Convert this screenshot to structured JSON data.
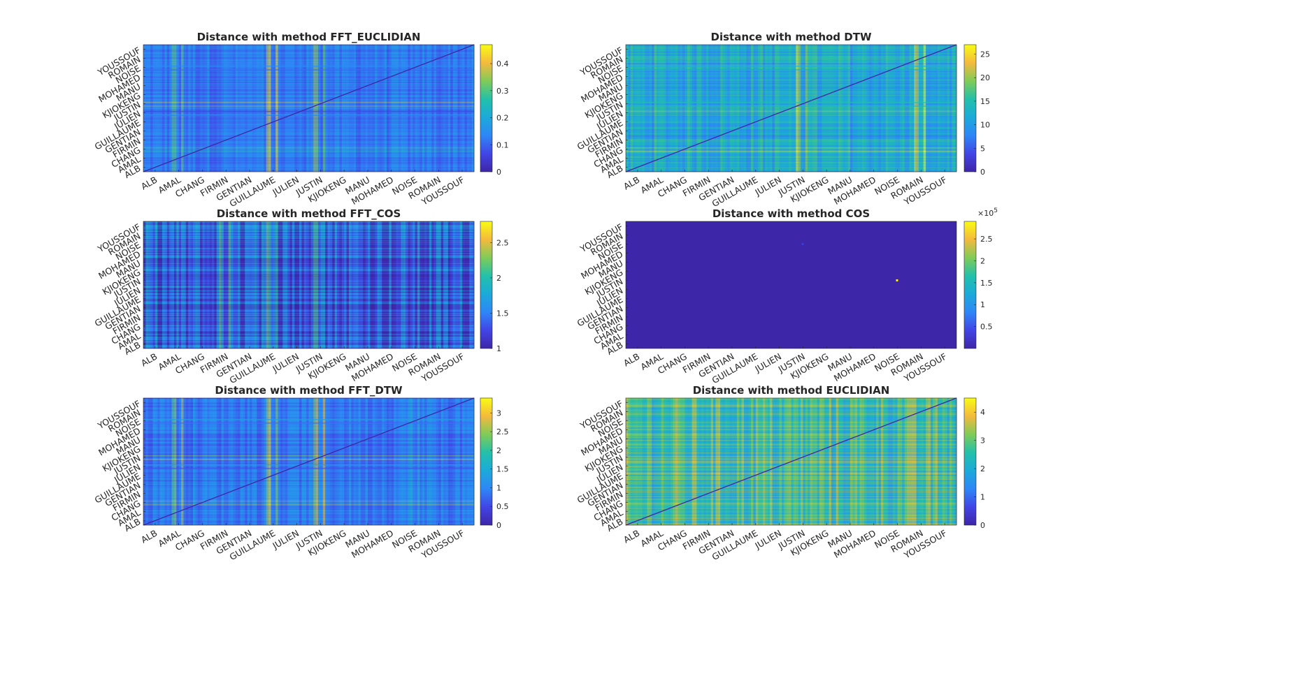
{
  "figure": {
    "background": "#ffffff",
    "colormap": "parula",
    "colormap_stops": [
      "#3e26a8",
      "#4245e5",
      "#2e87f7",
      "#1caad9",
      "#23c0aa",
      "#80cb58",
      "#f4ba3d",
      "#f9fb14"
    ],
    "names": [
      "ALB",
      "AMAL",
      "CHANG",
      "FIRMIN",
      "GENTIAN",
      "GUILLAUME",
      "JULIEN",
      "JUSTIN",
      "KJIOKENG",
      "MANU",
      "MOHAMED",
      "NOISE",
      "ROMAIN",
      "YOUSSOUF"
    ]
  },
  "chart_data": [
    {
      "type": "heatmap",
      "title": "Distance with method FFT_EUCLIDIAN",
      "x_tick_labels": [
        "ALB",
        "AMAL",
        "CHANG",
        "FIRMIN",
        "GENTIAN",
        "GUILLAUME",
        "JULIEN",
        "JUSTIN",
        "KJIOKENG",
        "MANU",
        "MOHAMED",
        "NOISE",
        "ROMAIN",
        "YOUSSOUF"
      ],
      "y_tick_labels": [
        "ALB",
        "AMAL",
        "CHANG",
        "FIRMIN",
        "GENTIAN",
        "GUILLAUME",
        "JULIEN",
        "JUSTIN",
        "KJIOKENG",
        "MANU",
        "MOHAMED",
        "NOISE",
        "ROMAIN",
        "YOUSSOUF"
      ],
      "clim": [
        0,
        0.47
      ],
      "colorbar_ticks": [
        0,
        0.1,
        0.2,
        0.3,
        0.4
      ],
      "colorbar_tick_labels": [
        "0",
        "0.1",
        "0.2",
        "0.3",
        "0.4"
      ],
      "colorbar_exponent": "",
      "diagonal_zero": true,
      "typical_level": 0.12,
      "notable_columns": [
        {
          "name": "AMAL",
          "value": 0.32
        },
        {
          "name": "GUILLAUME",
          "value": 0.4
        },
        {
          "name": "JUSTIN",
          "value": 0.36
        }
      ],
      "notable_rows": [
        {
          "name": "NOISE",
          "value": 0.3
        },
        {
          "name": "JULIEN",
          "value": 0.38
        }
      ]
    },
    {
      "type": "heatmap",
      "title": "Distance with method DTW",
      "x_tick_labels": [
        "ALB",
        "AMAL",
        "CHANG",
        "FIRMIN",
        "GENTIAN",
        "GUILLAUME",
        "JULIEN",
        "JUSTIN",
        "KJIOKENG",
        "MANU",
        "MOHAMED",
        "NOISE",
        "ROMAIN",
        "YOUSSOUF"
      ],
      "y_tick_labels": [
        "ALB",
        "AMAL",
        "CHANG",
        "FIRMIN",
        "GENTIAN",
        "GUILLAUME",
        "JULIEN",
        "JUSTIN",
        "KJIOKENG",
        "MANU",
        "MOHAMED",
        "NOISE",
        "ROMAIN",
        "YOUSSOUF"
      ],
      "clim": [
        0,
        27
      ],
      "colorbar_ticks": [
        0,
        5,
        10,
        15,
        20,
        25
      ],
      "colorbar_tick_labels": [
        "0",
        "5",
        "10",
        "15",
        "20",
        "25"
      ],
      "colorbar_exponent": "",
      "diagonal_zero": true,
      "typical_level": 12,
      "notable_columns": [
        {
          "name": "JUSTIN",
          "value": 23
        },
        {
          "name": "ROMAIN",
          "value": 24
        }
      ],
      "notable_rows": [
        {
          "name": "NOISE",
          "value": 23
        },
        {
          "name": "JUSTIN",
          "value": 20
        }
      ]
    },
    {
      "type": "heatmap",
      "title": "Distance with method FFT_COS",
      "x_tick_labels": [
        "ALB",
        "AMAL",
        "CHANG",
        "FIRMIN",
        "GENTIAN",
        "GUILLAUME",
        "JULIEN",
        "JUSTIN",
        "KJIOKENG",
        "MANU",
        "MOHAMED",
        "NOISE",
        "ROMAIN",
        "YOUSSOUF"
      ],
      "y_tick_labels": [
        "ALB",
        "AMAL",
        "CHANG",
        "FIRMIN",
        "GENTIAN",
        "GUILLAUME",
        "JULIEN",
        "JUSTIN",
        "KJIOKENG",
        "MANU",
        "MOHAMED",
        "NOISE",
        "ROMAIN",
        "YOUSSOUF"
      ],
      "clim": [
        1,
        2.8
      ],
      "colorbar_ticks": [
        1,
        1.5,
        2,
        2.5
      ],
      "colorbar_tick_labels": [
        "1",
        "1.5",
        "2",
        "2.5"
      ],
      "colorbar_exponent": "",
      "diagonal_zero": false,
      "typical_level": 1.3,
      "notable_columns": [
        {
          "name": "FIRMIN",
          "value": 2.0
        },
        {
          "name": "GUILLAUME",
          "value": 2.1
        },
        {
          "name": "JUSTIN",
          "value": 2.1
        }
      ],
      "notable_rows": []
    },
    {
      "type": "heatmap",
      "title": "Distance with method COS",
      "x_tick_labels": [
        "ALB",
        "AMAL",
        "CHANG",
        "FIRMIN",
        "GENTIAN",
        "GUILLAUME",
        "JULIEN",
        "JUSTIN",
        "KJIOKENG",
        "MANU",
        "MOHAMED",
        "NOISE",
        "ROMAIN",
        "YOUSSOUF"
      ],
      "y_tick_labels": [
        "ALB",
        "AMAL",
        "CHANG",
        "FIRMIN",
        "GENTIAN",
        "GUILLAUME",
        "JULIEN",
        "JUSTIN",
        "KJIOKENG",
        "MANU",
        "MOHAMED",
        "NOISE",
        "ROMAIN",
        "YOUSSOUF"
      ],
      "clim": [
        0,
        2.9
      ],
      "colorbar_ticks": [
        0.5,
        1,
        1.5,
        2,
        2.5
      ],
      "colorbar_tick_labels": [
        "0.5",
        "1",
        "1.5",
        "2",
        "2.5"
      ],
      "colorbar_exponent": "5",
      "diagonal_zero": false,
      "uniform_value": 0,
      "outliers": [
        {
          "row": "NOISE",
          "column": "JUSTIN",
          "value": 0.3
        },
        {
          "row": "JUSTIN",
          "column": "NOISE",
          "value": 2.8
        }
      ]
    },
    {
      "type": "heatmap",
      "title": "Distance with method FFT_DTW",
      "x_tick_labels": [
        "ALB",
        "AMAL",
        "CHANG",
        "FIRMIN",
        "GENTIAN",
        "GUILLAUME",
        "JULIEN",
        "JUSTIN",
        "KJIOKENG",
        "MANU",
        "MOHAMED",
        "NOISE",
        "ROMAIN",
        "YOUSSOUF"
      ],
      "y_tick_labels": [
        "ALB",
        "AMAL",
        "CHANG",
        "FIRMIN",
        "GENTIAN",
        "GUILLAUME",
        "JULIEN",
        "JUSTIN",
        "KJIOKENG",
        "MANU",
        "MOHAMED",
        "NOISE",
        "ROMAIN",
        "YOUSSOUF"
      ],
      "clim": [
        0,
        3.4
      ],
      "colorbar_ticks": [
        0,
        0.5,
        1,
        1.5,
        2,
        2.5,
        3
      ],
      "colorbar_tick_labels": [
        "0",
        "0.5",
        "1",
        "1.5",
        "2",
        "2.5",
        "3"
      ],
      "colorbar_exponent": "",
      "diagonal_zero": true,
      "typical_level": 0.9,
      "notable_columns": [
        {
          "name": "AMAL",
          "value": 2.4
        },
        {
          "name": "GUILLAUME",
          "value": 2.9
        },
        {
          "name": "JUSTIN",
          "value": 2.6
        },
        {
          "name": "NOISE",
          "value": 1.6
        }
      ],
      "notable_rows": [
        {
          "name": "NOISE",
          "value": 2.5
        },
        {
          "name": "JULIEN",
          "value": 2.7
        }
      ]
    },
    {
      "type": "heatmap",
      "title": "Distance with method EUCLIDIAN",
      "x_tick_labels": [
        "ALB",
        "AMAL",
        "CHANG",
        "FIRMIN",
        "GENTIAN",
        "GUILLAUME",
        "JULIEN",
        "JUSTIN",
        "KJIOKENG",
        "MANU",
        "MOHAMED",
        "NOISE",
        "ROMAIN",
        "YOUSSOUF"
      ],
      "y_tick_labels": [
        "ALB",
        "AMAL",
        "CHANG",
        "FIRMIN",
        "GENTIAN",
        "GUILLAUME",
        "JULIEN",
        "JUSTIN",
        "KJIOKENG",
        "MANU",
        "MOHAMED",
        "NOISE",
        "ROMAIN",
        "YOUSSOUF"
      ],
      "clim": [
        0,
        4.5
      ],
      "colorbar_ticks": [
        0,
        1,
        2,
        3,
        4
      ],
      "colorbar_tick_labels": [
        "0",
        "1",
        "2",
        "3",
        "4"
      ],
      "colorbar_exponent": "",
      "diagonal_zero": true,
      "typical_level": 2.6,
      "notable_columns": [],
      "notable_rows": []
    }
  ]
}
